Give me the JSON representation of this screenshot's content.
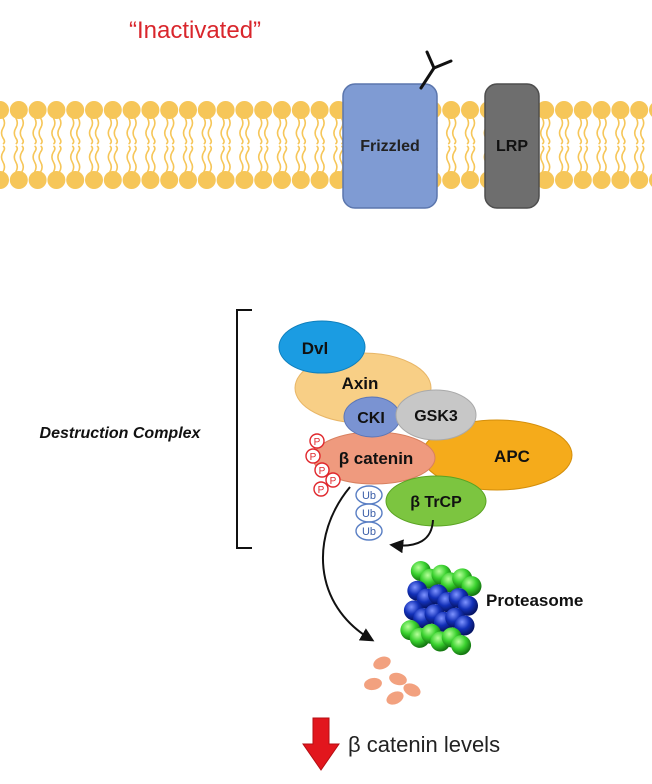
{
  "title": "“Inactivated”",
  "labels": {
    "frizzled": "Frizzled",
    "lrp": "LRP",
    "dvl": "Dvl",
    "axin": "Axin",
    "cki": "CKI",
    "gsk3": "GSK3",
    "apc": "APC",
    "beta_catenin": "β catenin",
    "beta_trcp": "β TrCP",
    "destruction_complex": "Destruction Complex",
    "proteasome": "Proteasome",
    "levels": "β catenin levels",
    "phospho": "P",
    "ubiquitin": "Ub"
  },
  "colors": {
    "title": "#d9262c",
    "membrane": "#f6c659",
    "frizzled": "#7f9bd3",
    "lrp": "#6e6e6e",
    "dvl": "#1b9ce2",
    "axin": "#f8cf86",
    "cki": "#7a93d2",
    "gsk3": "#c7c7c7",
    "apc": "#f5ab1b",
    "beta_catenin": "#ef9a7e",
    "beta_trcp": "#7cc540",
    "phospho": "#e0262b",
    "ubiquitin": "#5a7fc4",
    "proteasome_green": "#39d12e",
    "proteasome_blue": "#1230b8",
    "fragments": "#f2a17f",
    "down_arrow": "#e2161d"
  }
}
